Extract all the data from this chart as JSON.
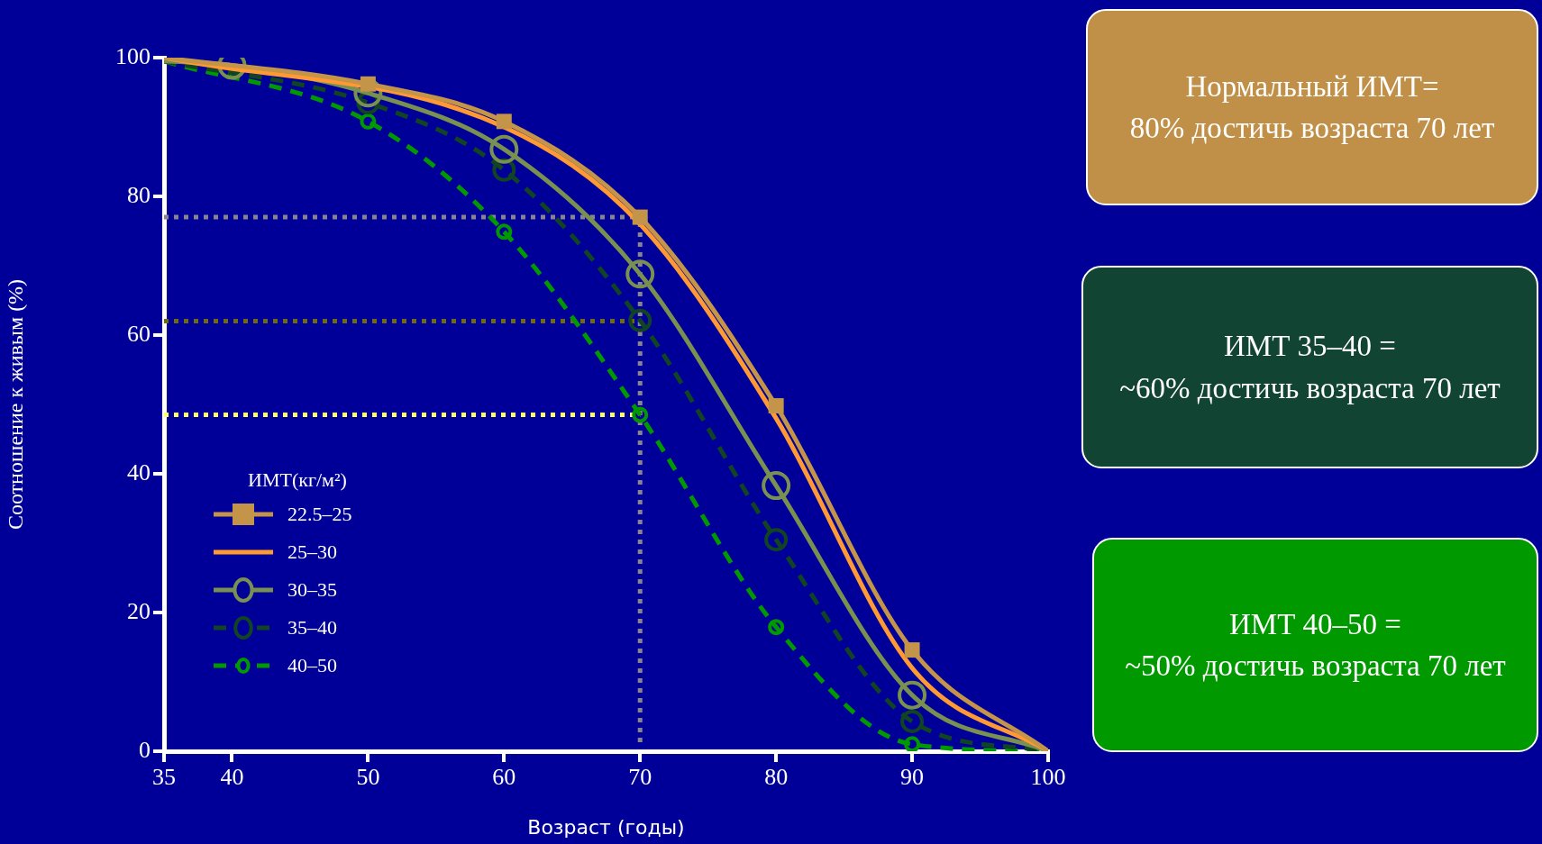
{
  "chart_data": [
    {
      "type": "line",
      "xlabel": "Возраст (годы)",
      "ylabel": "Соотношение к живым (%)",
      "legend_title": "ИМТ(кг/м²)",
      "legend": "bottom left",
      "xlim": [
        35,
        100
      ],
      "xticks": [
        35,
        40,
        50,
        60,
        70,
        80,
        90,
        100
      ],
      "ylim": [
        0,
        100
      ],
      "yticks": [
        0,
        20,
        40,
        60,
        80,
        100
      ],
      "series": [
        {
          "name": "22.5–25",
          "color": "#c49448",
          "marker": "square",
          "line_style": "solid",
          "x": [
            35,
            50,
            60,
            70,
            80,
            90,
            100
          ],
          "values": [
            100,
            96.2,
            90.8,
            77,
            49.8,
            14.6,
            0
          ]
        },
        {
          "name": "25–30",
          "color": "#ff9933",
          "marker": "none",
          "line_style": "solid",
          "x": [
            35,
            60,
            70,
            80,
            90,
            100
          ],
          "values": [
            100,
            90,
            76,
            48,
            12,
            0
          ]
        },
        {
          "name": "30–35",
          "color": "#7a9050",
          "marker": "circle",
          "line_style": "solid",
          "x": [
            35,
            40,
            50,
            60,
            70,
            80,
            90,
            100
          ],
          "values": [
            99.5,
            98.9,
            94.9,
            86.8,
            68.8,
            38.3,
            8.1,
            0
          ]
        },
        {
          "name": "35–40",
          "color": "#114422",
          "marker": "circle",
          "line_style": "dashed",
          "x": [
            35,
            50,
            60,
            70,
            80,
            90,
            100
          ],
          "values": [
            99.5,
            93.5,
            83.8,
            62.1,
            30.5,
            4.3,
            0
          ]
        },
        {
          "name": "40–50",
          "color": "#009900",
          "marker": "circle",
          "line_style": "dashed",
          "x": [
            35,
            50,
            60,
            70,
            80,
            90,
            100
          ],
          "values": [
            99.5,
            90.8,
            74.9,
            48.5,
            17.9,
            1,
            0
          ]
        }
      ],
      "ref_lines": [
        {
          "axis": "x",
          "value": 70,
          "color": "#8a8490",
          "line_style": "dotted"
        },
        {
          "axis": "y",
          "value": 77,
          "color": "#8a8490",
          "line_style": "dotted"
        },
        {
          "axis": "y",
          "value": 62,
          "color": "#706a10",
          "line_style": "dotted"
        },
        {
          "axis": "y",
          "value": 48.5,
          "color": "#ffff66",
          "line_style": "dotted"
        }
      ]
    },
    {
      "type": "other",
      "annotations": [
        "Нормальный ИМТ=\n80% достичь возраста 70 лет",
        "ИМТ 35–40 =\n~60% достичь возраста 70 лет",
        "ИМТ 40–50 =\n~50% достичь возраста 70 лет"
      ],
      "colors": [
        "#c09048",
        "#114433",
        "#009900"
      ]
    }
  ]
}
